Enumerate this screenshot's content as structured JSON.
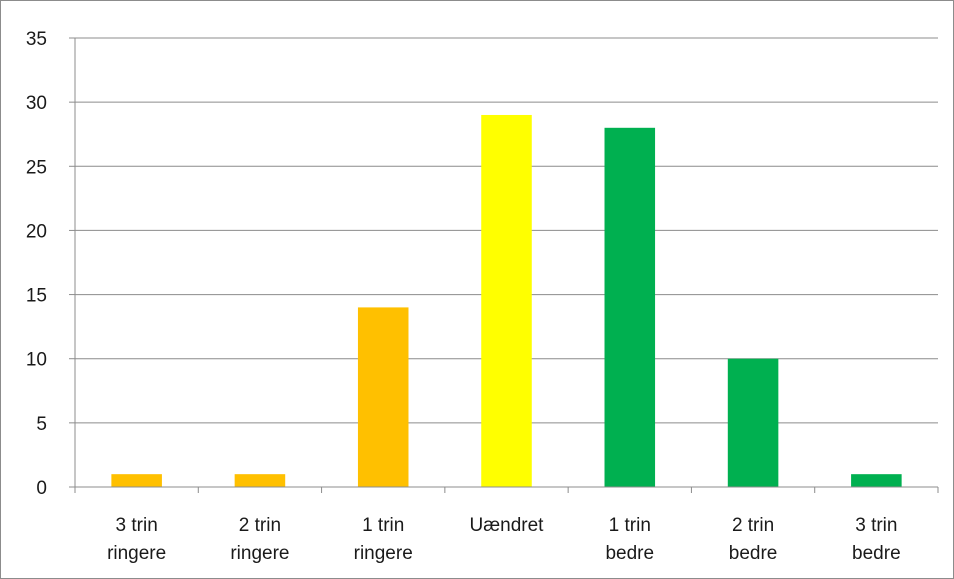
{
  "chart_data": {
    "type": "bar",
    "categories": [
      [
        "3 trin",
        "ringere"
      ],
      [
        "2 trin",
        "ringere"
      ],
      [
        "1 trin",
        "ringere"
      ],
      [
        "Uændret"
      ],
      [
        "1 trin",
        "bedre"
      ],
      [
        "2 trin",
        "bedre"
      ],
      [
        "3 trin",
        "bedre"
      ]
    ],
    "values": [
      1,
      1,
      14,
      29,
      28,
      10,
      1
    ],
    "bar_colors": [
      "#FFC000",
      "#FFC000",
      "#FFC000",
      "#FFFF00",
      "#00B050",
      "#00B050",
      "#00B050"
    ],
    "ylim": [
      0,
      35
    ],
    "yticks": [
      0,
      5,
      10,
      15,
      20,
      25,
      30,
      35
    ],
    "grid": true,
    "title": "",
    "xlabel": "",
    "ylabel": "",
    "colors": {
      "gridline": "#8c8c8c",
      "axis": "#8c8c8c",
      "text": "#1a1a1a"
    }
  }
}
